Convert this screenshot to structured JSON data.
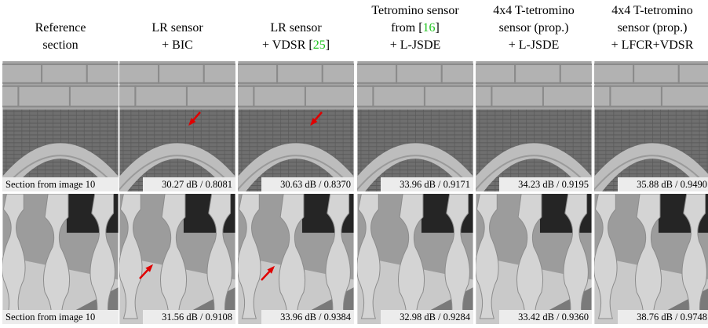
{
  "columns": [
    {
      "header": [
        [
          {
            "text": "Reference"
          }
        ],
        [
          {
            "text": "section"
          }
        ]
      ]
    },
    {
      "header": [
        [
          {
            "text": "LR sensor"
          }
        ],
        [
          {
            "text": "+ BIC"
          }
        ]
      ]
    },
    {
      "header": [
        [
          {
            "text": "LR sensor"
          }
        ],
        [
          {
            "text": "+ VDSR ["
          },
          {
            "text": "25",
            "color": "#1fc31f"
          },
          {
            "text": "]"
          }
        ]
      ]
    },
    {
      "header": [
        [
          {
            "text": "Tetromino sensor"
          }
        ],
        [
          {
            "text": "from ["
          },
          {
            "text": "16",
            "color": "#1fc31f"
          },
          {
            "text": "]"
          }
        ],
        [
          {
            "text": "+ L-JSDE"
          }
        ]
      ]
    },
    {
      "header": [
        [
          {
            "text": "4x4 T-tetromino"
          }
        ],
        [
          {
            "text": "sensor (prop.)"
          }
        ],
        [
          {
            "text": "+ L-JSDE"
          }
        ]
      ]
    },
    {
      "header": [
        [
          {
            "text": "4x4 T-tetromino"
          }
        ],
        [
          {
            "text": "sensor (prop.)"
          }
        ],
        [
          {
            "text": "+ LFCR+VDSR"
          }
        ]
      ]
    }
  ],
  "rows": [
    {
      "captions": [
        "Section from image 10",
        "30.27 dB / 0.8081",
        "30.63 dB / 0.8370",
        "33.96 dB / 0.9171",
        "34.23 dB / 0.9195",
        "35.88 dB / 0.9490"
      ]
    },
    {
      "captions": [
        "Section from image 10",
        "31.56 dB / 0.9108",
        "33.96 dB / 0.9384",
        "32.98 dB / 0.9284",
        "33.42 dB / 0.9360",
        "38.76 dB / 0.9748"
      ]
    }
  ]
}
